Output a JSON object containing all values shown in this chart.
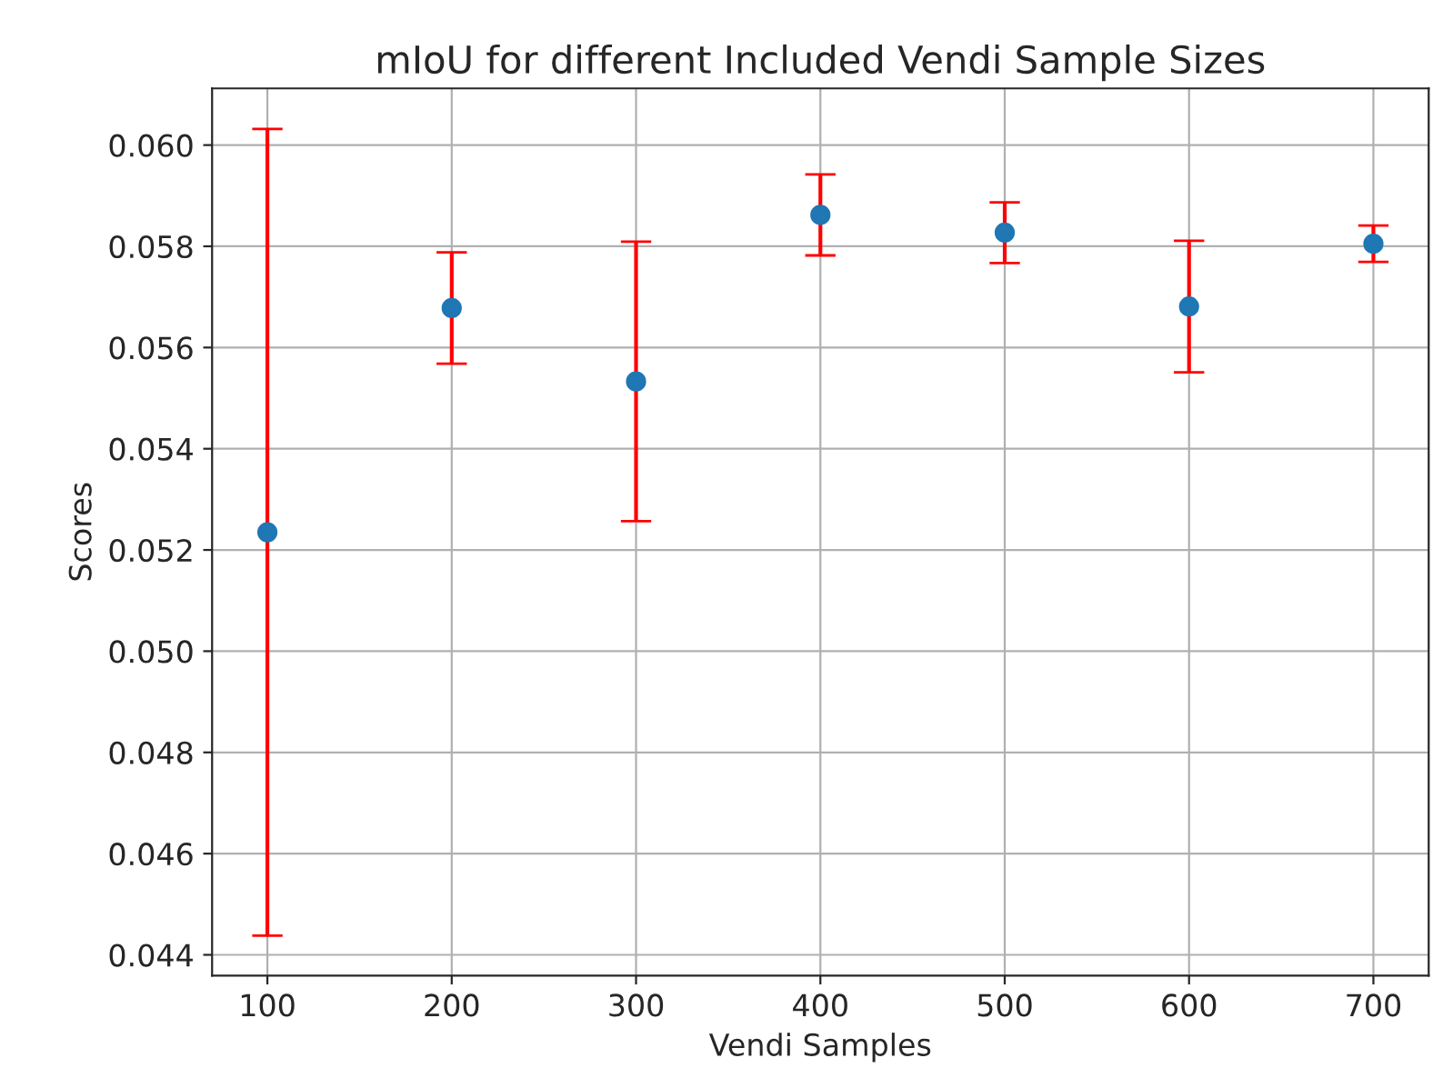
{
  "chart_data": {
    "type": "scatter",
    "title": "mIoU for different Included Vendi Sample Sizes",
    "xlabel": "Vendi Samples",
    "ylabel": "Scores",
    "x": [
      100,
      200,
      300,
      400,
      500,
      600,
      700
    ],
    "series": [
      {
        "color": "#1f77b4",
        "values": [
          0.05235,
          0.05678,
          0.05533,
          0.05862,
          0.05827,
          0.05681,
          0.05805
        ],
        "errors": [
          0.00797,
          0.0011,
          0.00276,
          0.0008,
          0.0006,
          0.0013,
          0.00036
        ]
      }
    ],
    "xlim": [
      70,
      730
    ],
    "ylim": [
      0.04359,
      0.06112
    ],
    "xticks": [
      100,
      200,
      300,
      400,
      500,
      600,
      700
    ],
    "yticks": [
      {
        "value": 0.044,
        "label": "0.044"
      },
      {
        "value": 0.046,
        "label": "0.046"
      },
      {
        "value": 0.048,
        "label": "0.048"
      },
      {
        "value": 0.05,
        "label": "0.050"
      },
      {
        "value": 0.052,
        "label": "0.052"
      },
      {
        "value": 0.054,
        "label": "0.054"
      },
      {
        "value": 0.056,
        "label": "0.056"
      },
      {
        "value": 0.058,
        "label": "0.058"
      },
      {
        "value": 0.06,
        "label": "0.060"
      }
    ],
    "grid": true,
    "marker": "circle"
  }
}
